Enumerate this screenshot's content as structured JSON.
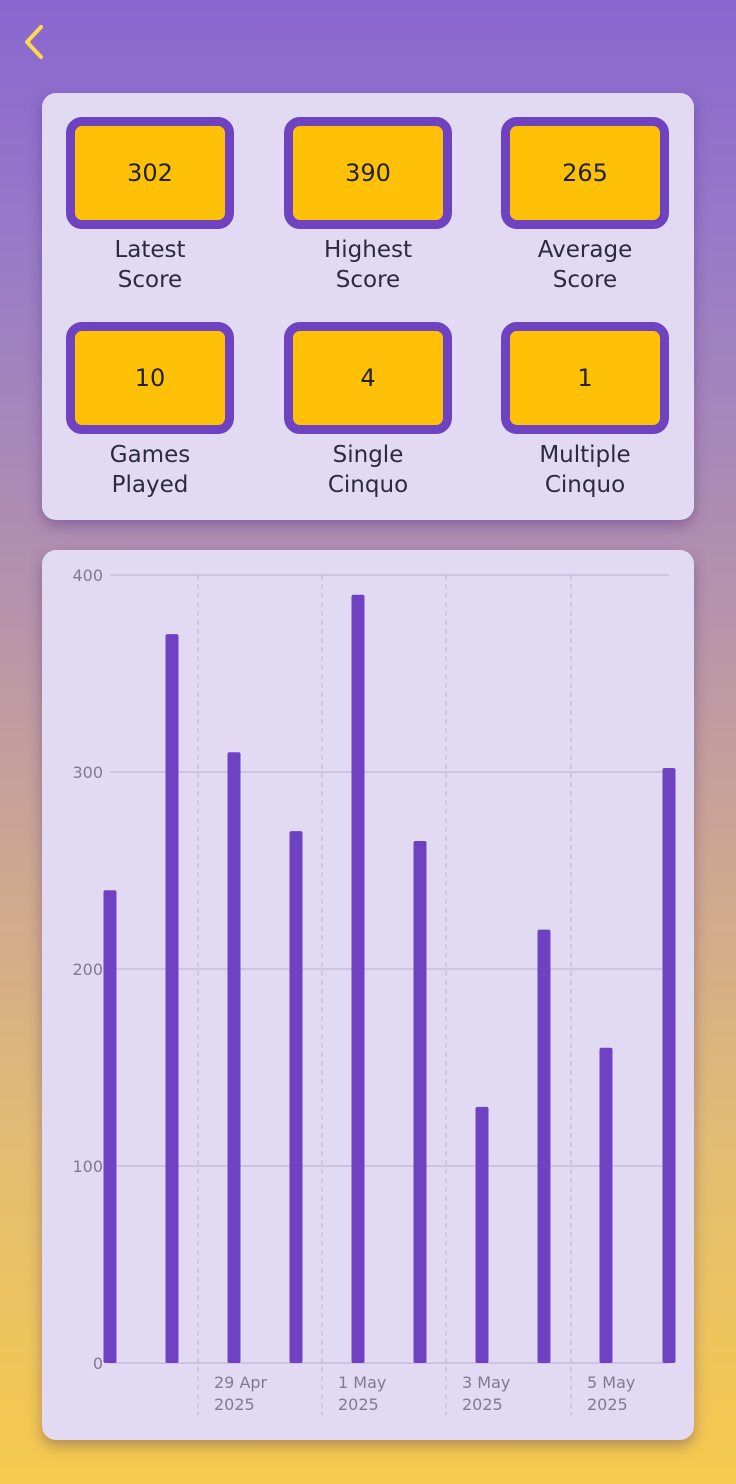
{
  "nav": {
    "back_icon": "chevron-left-icon",
    "icon_color": "#ffd84d"
  },
  "stats": [
    {
      "value": "302",
      "label": "Latest\nScore"
    },
    {
      "value": "390",
      "label": "Highest\nScore"
    },
    {
      "value": "265",
      "label": "Average\nScore"
    },
    {
      "value": "10",
      "label": "Games\nPlayed"
    },
    {
      "value": "4",
      "label": "Single\nCinquo"
    },
    {
      "value": "1",
      "label": "Multiple\nCinquo"
    }
  ],
  "colors": {
    "accent": "#6f42c1",
    "tile": "#ffc107",
    "card": "#e2daf3"
  },
  "chart_data": {
    "type": "bar",
    "values": [
      240,
      370,
      310,
      270,
      390,
      265,
      130,
      220,
      160,
      302
    ],
    "ylim": [
      0,
      400
    ],
    "yticks": [
      0,
      100,
      200,
      300,
      400
    ],
    "xtick_labels": [
      [
        "29 Apr",
        "2025"
      ],
      [
        "1 May",
        "2025"
      ],
      [
        "3 May",
        "2025"
      ],
      [
        "5 May",
        "2025"
      ]
    ],
    "grid": true,
    "bar_color": "#6f42c1"
  }
}
